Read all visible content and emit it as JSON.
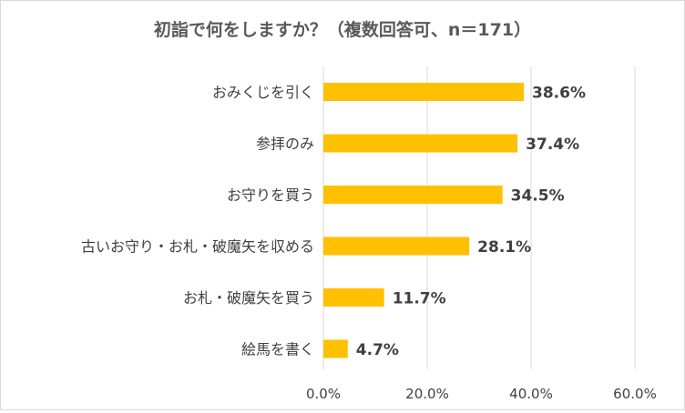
{
  "chart_data": {
    "type": "bar",
    "orientation": "horizontal",
    "title": "初詣で何をしますか？（複数回答可、n＝171）",
    "categories": [
      "おみくじを引く",
      "参拝のみ",
      "お守りを買う",
      "古いお守り・お札・破魔矢を収める",
      "お札・破魔矢を買う",
      "絵馬を書く"
    ],
    "values": [
      38.6,
      37.4,
      34.5,
      28.1,
      11.7,
      4.7
    ],
    "data_labels": [
      "38.6%",
      "37.4%",
      "34.5%",
      "28.1%",
      "11.7%",
      "4.7%"
    ],
    "xlim": [
      0,
      60
    ],
    "x_ticks": [
      0,
      20,
      40,
      60
    ],
    "x_tick_labels": [
      "0.0%",
      "20.0%",
      "40.0%",
      "60.0%"
    ],
    "grid": true,
    "bar_color": "#FFC000",
    "grid_color": "#d9d9d9",
    "text_color": "#404040"
  }
}
